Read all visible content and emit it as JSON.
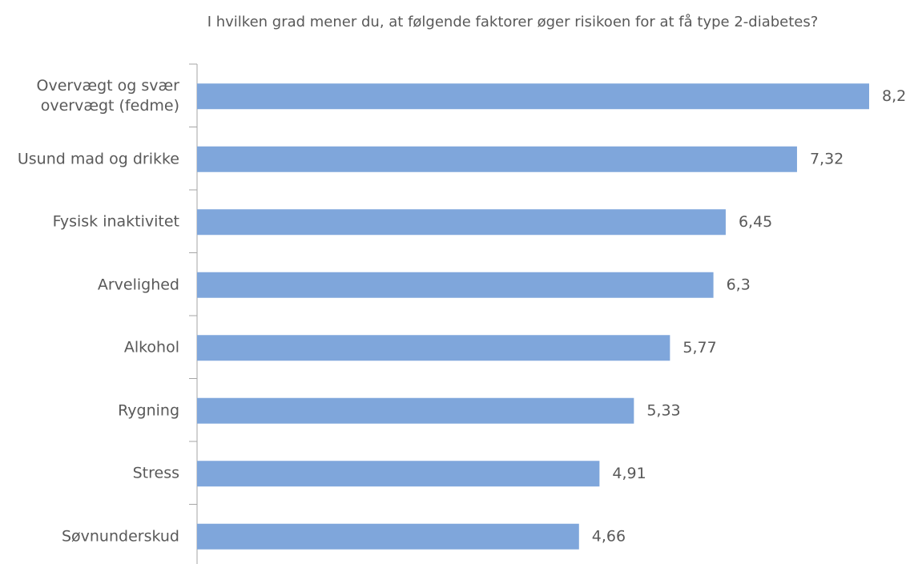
{
  "chart_data": {
    "type": "barh",
    "title": "I hvilken grad mener du, at følgende faktorer øger risikoen for at få type 2-diabetes?",
    "categories": [
      "Overvægt og svær overvægt (fedme)",
      "Usund mad og drikke",
      "Fysisk inaktivitet",
      "Arvelighed",
      "Alkohol",
      "Rygning",
      "Stress",
      "Søvnunderskud"
    ],
    "values": [
      8.2,
      7.32,
      6.45,
      6.3,
      5.77,
      5.33,
      4.91,
      4.66
    ],
    "value_labels": [
      "8,2",
      "7,32",
      "6,45",
      "6,3",
      "5,77",
      "5,33",
      "4,91",
      "4,66"
    ],
    "color": "#7fa6db"
  }
}
